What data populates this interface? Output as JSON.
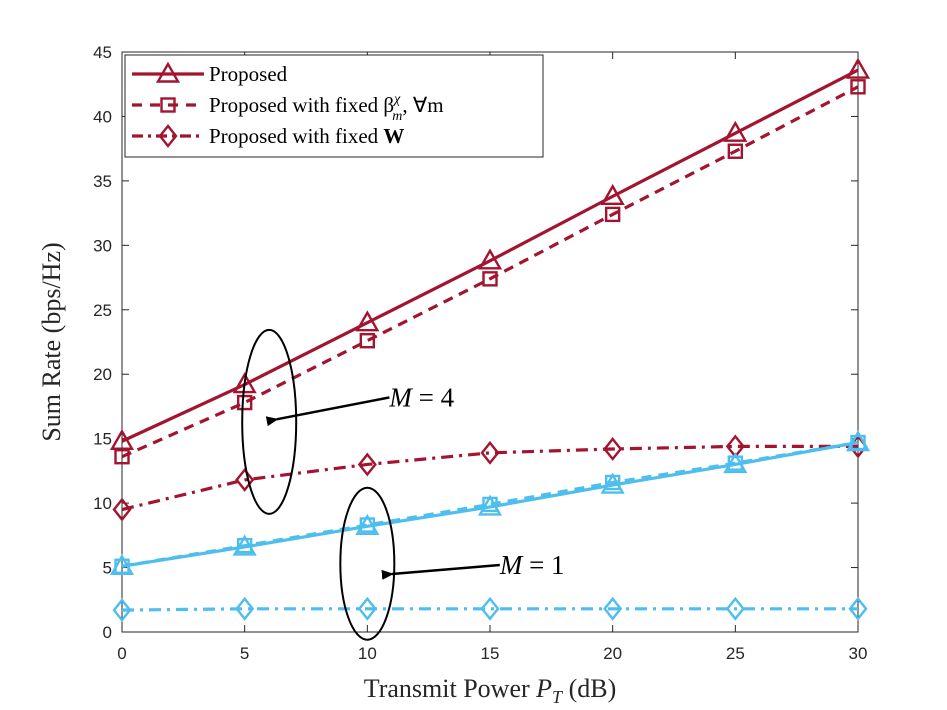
{
  "chart_data": {
    "type": "line",
    "xlabel": "Transmit Power P_T (dB)",
    "xlabel_main": "Transmit Power ",
    "xlabel_var": "P",
    "xlabel_sub": "T",
    "xlabel_unit": " (dB)",
    "ylabel": "Sum Rate (bps/Hz)",
    "xlim": [
      0,
      30
    ],
    "ylim": [
      0,
      45
    ],
    "xticks": [
      0,
      5,
      10,
      15,
      20,
      25,
      30
    ],
    "yticks": [
      0,
      5,
      10,
      15,
      20,
      25,
      30,
      35,
      40,
      45
    ],
    "x": [
      0,
      5,
      10,
      15,
      20,
      25,
      30
    ],
    "colors": {
      "m4": "#A2142F",
      "m1": "#4DBEEE"
    },
    "legend_position": "top-left",
    "legend": [
      {
        "label": "Proposed",
        "marker": "triangle",
        "dash": "solid"
      },
      {
        "label": "Proposed with fixed β",
        "sup": "χ",
        "sub": "m",
        "tail": ", ∀m",
        "marker": "square",
        "dash": "dashed"
      },
      {
        "label": "Proposed with fixed ",
        "bold": "W",
        "marker": "diamond",
        "dash": "dashdot"
      }
    ],
    "series": [
      {
        "name": "Proposed (M=4)",
        "group": "m4",
        "marker": "triangle",
        "dash": "solid",
        "values": [
          14.8,
          19.2,
          24.0,
          28.8,
          33.8,
          38.7,
          43.6
        ]
      },
      {
        "name": "Proposed with fixed beta (M=4)",
        "group": "m4",
        "marker": "square",
        "dash": "dashed",
        "values": [
          13.6,
          17.8,
          22.6,
          27.4,
          32.4,
          37.3,
          42.3
        ]
      },
      {
        "name": "Proposed with fixed W (M=4)",
        "group": "m4",
        "marker": "diamond",
        "dash": "dashdot",
        "values": [
          9.5,
          11.8,
          13.0,
          13.9,
          14.2,
          14.4,
          14.4
        ]
      },
      {
        "name": "Proposed (M=1)",
        "group": "m1",
        "marker": "triangle",
        "dash": "solid",
        "values": [
          5.1,
          6.6,
          8.2,
          9.7,
          11.4,
          13.0,
          14.7
        ]
      },
      {
        "name": "Proposed with fixed beta (M=1)",
        "group": "m1",
        "marker": "square",
        "dash": "dashed",
        "values": [
          5.1,
          6.7,
          8.3,
          9.9,
          11.6,
          13.1,
          14.7
        ]
      },
      {
        "name": "Proposed with fixed W (M=1)",
        "group": "m1",
        "marker": "diamond",
        "dash": "dashdot",
        "values": [
          1.7,
          1.8,
          1.8,
          1.8,
          1.8,
          1.8,
          1.8
        ]
      }
    ],
    "annotations": [
      {
        "label": "M = 4",
        "text": "M",
        "rest": " = 4",
        "target_x": 6.3,
        "target_y": 16.5,
        "ellipse_x": 6.0,
        "ellipse_y": 16.3
      },
      {
        "label": "M = 1",
        "text": "M",
        "rest": " = 1",
        "target_x": 11.0,
        "target_y": 4.5,
        "ellipse_x": 10.0,
        "ellipse_y": 5.3
      }
    ]
  }
}
